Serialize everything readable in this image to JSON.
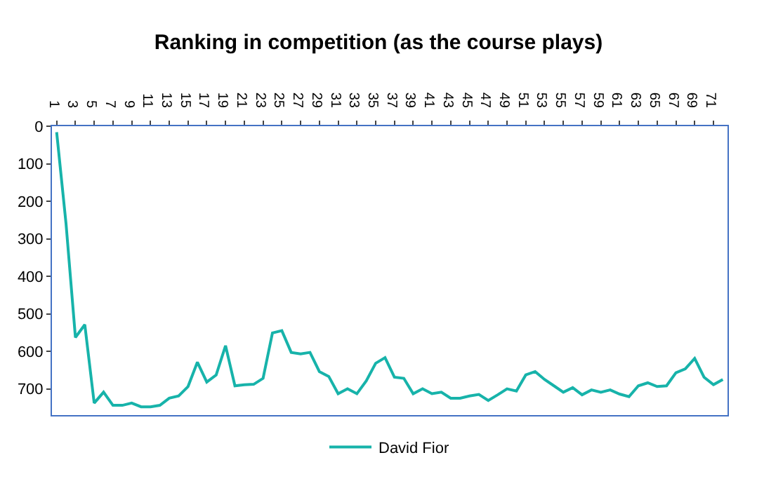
{
  "chart_data": {
    "type": "line",
    "title": "Ranking in competition (as the course plays)",
    "categories": [
      "1",
      null,
      "3",
      null,
      "5",
      null,
      "7",
      null,
      "9",
      null,
      "11",
      null,
      "13",
      null,
      "15",
      null,
      "17",
      null,
      "19",
      null,
      "21",
      null,
      "23",
      null,
      "25",
      null,
      "27",
      null,
      "29",
      null,
      "31",
      null,
      "33",
      null,
      "35",
      null,
      "37",
      null,
      "39",
      null,
      "41",
      null,
      "43",
      null,
      "45",
      null,
      "47",
      null,
      "49",
      null,
      "51",
      null,
      "53",
      null,
      "55",
      null,
      "57",
      null,
      "59",
      null,
      "61",
      null,
      "63",
      null,
      "65",
      null,
      "67",
      null,
      "69",
      null,
      "71",
      null
    ],
    "series": [
      {
        "name": "David Fior",
        "color": "#17b3aa",
        "values": [
          16,
          260,
          563,
          529,
          738,
          709,
          744,
          744,
          738,
          748,
          748,
          744,
          725,
          719,
          694,
          629,
          682,
          663,
          585,
          692,
          689,
          688,
          672,
          551,
          545,
          603,
          607,
          603,
          654,
          667,
          713,
          700,
          713,
          679,
          632,
          617,
          669,
          672,
          713,
          700,
          713,
          709,
          725,
          725,
          719,
          715,
          731,
          716,
          700,
          706,
          663,
          654,
          675,
          692,
          709,
          697,
          716,
          703,
          709,
          703,
          714,
          721,
          692,
          684,
          694,
          692,
          657,
          647,
          619,
          669,
          689,
          675
        ]
      }
    ],
    "ylim": [
      770,
      0
    ],
    "yticks": [
      0,
      100,
      200,
      300,
      400,
      500,
      600,
      700
    ],
    "legend": "bottom",
    "marker": "none",
    "line_style": "solid"
  }
}
